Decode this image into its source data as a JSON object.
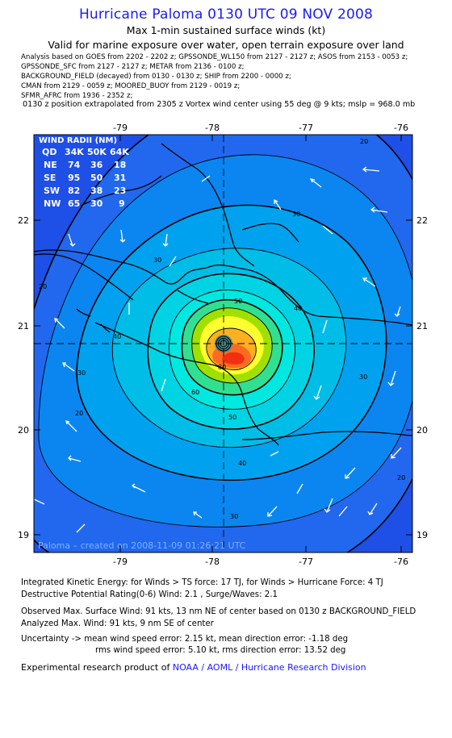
{
  "header": {
    "title": "Hurricane Paloma 0130 UTC 09 NOV 2008",
    "subtitle1": "Max 1-min sustained surface winds (kt)",
    "subtitle2": "Valid for marine exposure over water, open terrain exposure over land"
  },
  "sources": [
    "Analysis based on  GOES from 2202 - 2202 z;  GPSSONDE_WL150 from 2127 - 2127 z;  ASOS from 2153 - 0053 z;",
    "GPSSONDE_SFC from 2127 - 2127 z;  METAR from 2136 - 0100 z;",
    "BACKGROUND_FIELD (decayed) from 0130 - 0130 z;  SHIP from 2200 - 0000 z;",
    "CMAN from 2129 - 0059 z;  MOORED_BUOY from 2129 - 0019 z;",
    "SFMR_AFRC from 1936 - 2352 z;"
  ],
  "extrapolation_note": "0130 z position extrapolated from 2305 z Vortex wind center using 55 deg @ 9 kts; mslp = 968.0 mb",
  "map": {
    "x_ticks": [
      "-79",
      "-78",
      "-77",
      "-76"
    ],
    "y_ticks": [
      "22",
      "21",
      "20",
      "19"
    ],
    "contour_labels": [
      "20",
      "20",
      "20",
      "20",
      "30",
      "30",
      "30",
      "30",
      "30",
      "40",
      "40",
      "40",
      "50",
      "50",
      "60",
      "80"
    ],
    "created_label": "Paloma – created on 2008-11-09 01:26:21 UTC",
    "wind_radii": {
      "title": "WIND RADII (NM)",
      "header": [
        "QD",
        "34K",
        "50K",
        "64K"
      ],
      "rows": [
        [
          "NE",
          "74",
          "36",
          "18"
        ],
        [
          "SE",
          "95",
          "50",
          "31"
        ],
        [
          "SW",
          "82",
          "38",
          "23"
        ],
        [
          "NW",
          "65",
          "30",
          "9"
        ]
      ]
    },
    "colors": {
      "shade_20": "#1a55ee",
      "shade_30": "#00a0f0",
      "shade_50": "#00e8e0",
      "shade_60": "#30e090",
      "shade_70": "#a0e000",
      "shade_80": "#ffff30",
      "shade_90": "#ff6a20"
    }
  },
  "footer": {
    "ike": "Integrated Kinetic Energy:  for Winds > TS force: 17 TJ,  for Winds > Hurricane Force: 4 TJ",
    "dpr": "Destructive Potential Rating(0-6)   Wind: 2.1 , Surge/Waves: 2.1",
    "observed": "Observed Max. Surface Wind: 91 kts, 13 nm NE of center based on 0130 z BACKGROUND_FIELD",
    "analyzed": "Analyzed Max. Wind: 91 kts, 9 nm SE of center",
    "uncertainty1": "Uncertainty -> mean wind speed error: 2.15 kt,   mean direction error:  -1.18 deg",
    "uncertainty2": "rms wind speed error: 5.10 kt,   rms direction error: 13.52 deg",
    "credit_prefix": "Experimental research product of ",
    "credit_link": "NOAA / AOML / Hurricane Research Division"
  }
}
